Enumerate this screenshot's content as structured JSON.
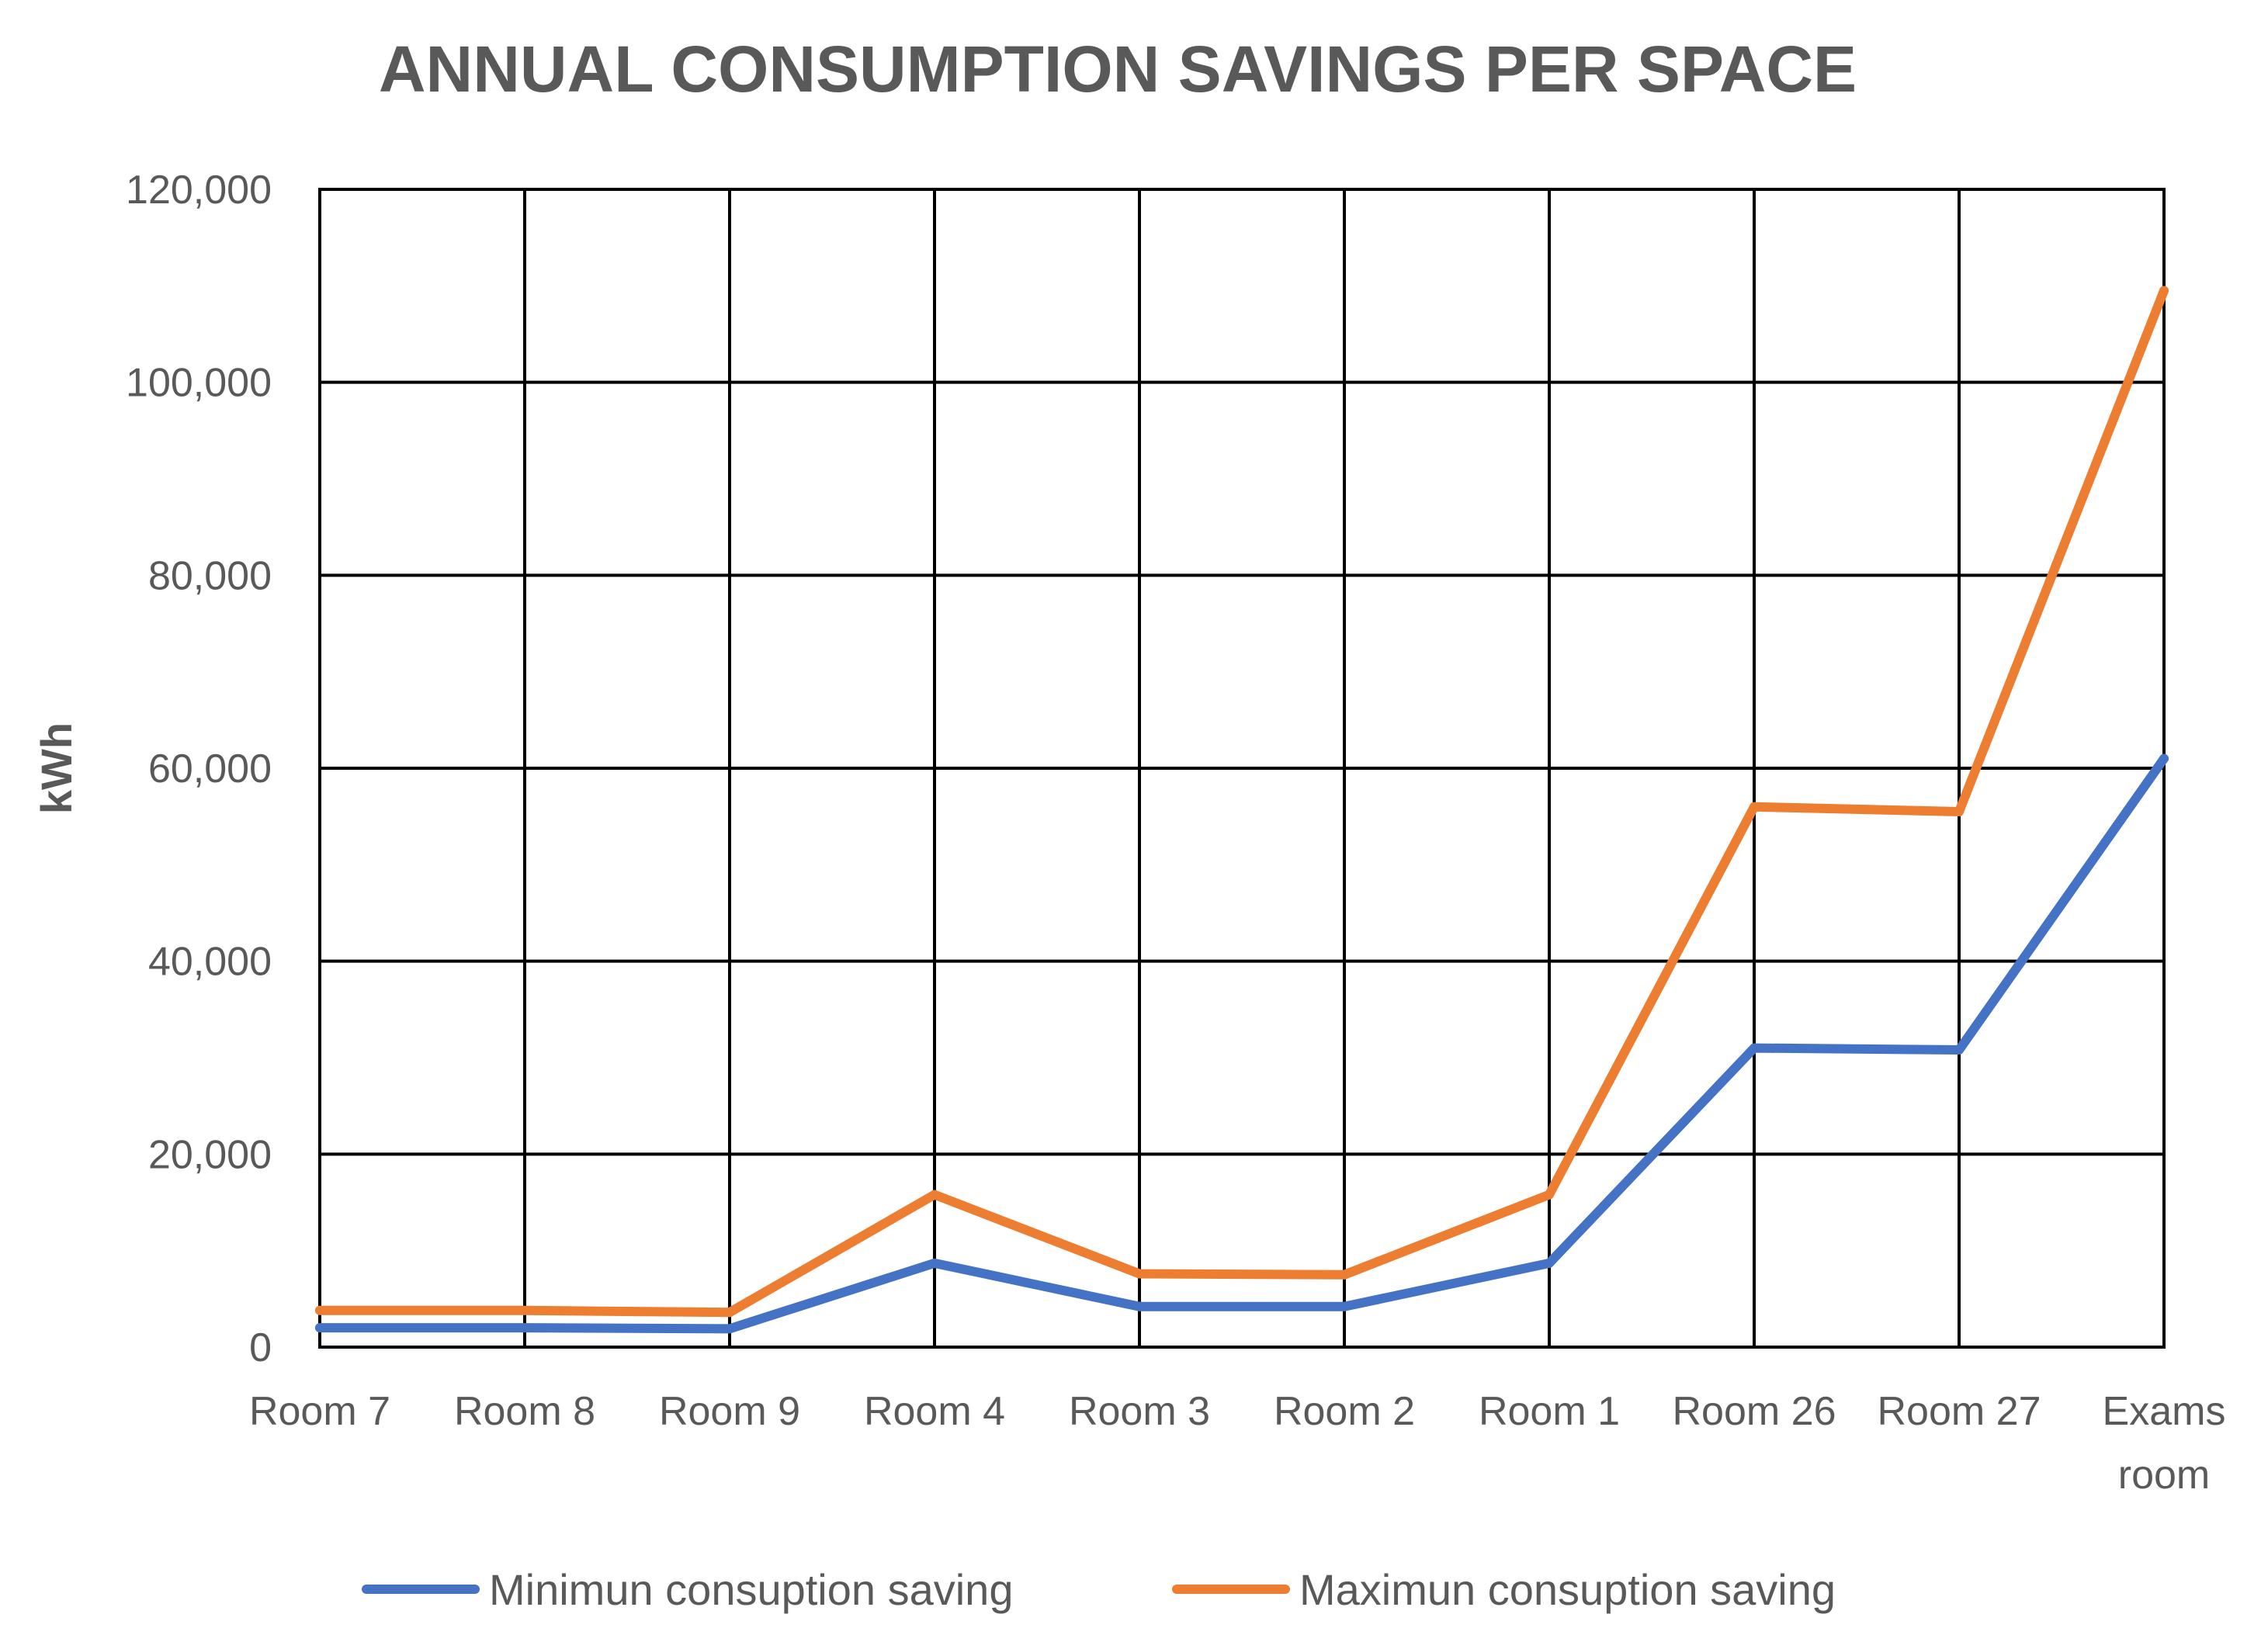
{
  "chart_data": {
    "type": "line",
    "title": "ANNUAL CONSUMPTION SAVINGS PER SPACE",
    "xlabel": "",
    "ylabel": "kWh",
    "categories": [
      "Room 7",
      "Room 8",
      "Room 9",
      "Room 4",
      "Room 3",
      "Room 2",
      "Room 1",
      "Room 26",
      "Room 27",
      "Exams room"
    ],
    "category_lines": [
      [
        "Room 7"
      ],
      [
        "Room 8"
      ],
      [
        "Room 9"
      ],
      [
        "Room 4"
      ],
      [
        "Room 3"
      ],
      [
        "Room 2"
      ],
      [
        "Room 1"
      ],
      [
        "Room 26"
      ],
      [
        "Room 27"
      ],
      [
        "Exams",
        "room"
      ]
    ],
    "ylim": [
      0,
      120000
    ],
    "yticks": [
      0,
      20000,
      40000,
      60000,
      80000,
      100000,
      120000
    ],
    "ytick_labels": [
      "0",
      "20,000",
      "40,000",
      "60,000",
      "80,000",
      "100,000",
      "120,000"
    ],
    "grid": true,
    "legend_position": "bottom",
    "series": [
      {
        "name": "Minimun consuption saving",
        "color": "#4472C4",
        "values": [
          2000,
          2000,
          1900,
          8700,
          4200,
          4200,
          8700,
          31000,
          30800,
          61000
        ]
      },
      {
        "name": "Maximun consuption saving",
        "color": "#ED7D31",
        "values": [
          3800,
          3800,
          3600,
          15800,
          7600,
          7500,
          15800,
          56000,
          55500,
          109500
        ]
      }
    ]
  }
}
